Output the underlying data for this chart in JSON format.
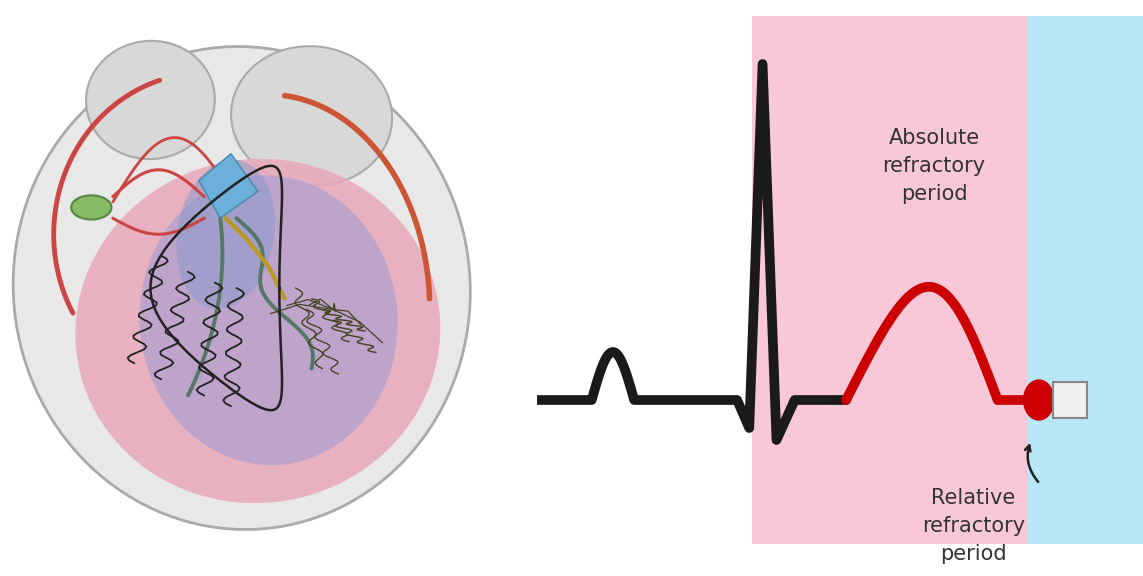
{
  "bg_color": "#ffffff",
  "pink_bg": "#f9c8d8",
  "blue_bg": "#b8e8f8",
  "ecg_color": "#1a1a1a",
  "red_color": "#cc0000",
  "text_color": "#333333",
  "abs_text": "Absolute\nrefractory\nperiod",
  "rel_text": "Relative\nrefractory\nperiod",
  "line_width": 7
}
